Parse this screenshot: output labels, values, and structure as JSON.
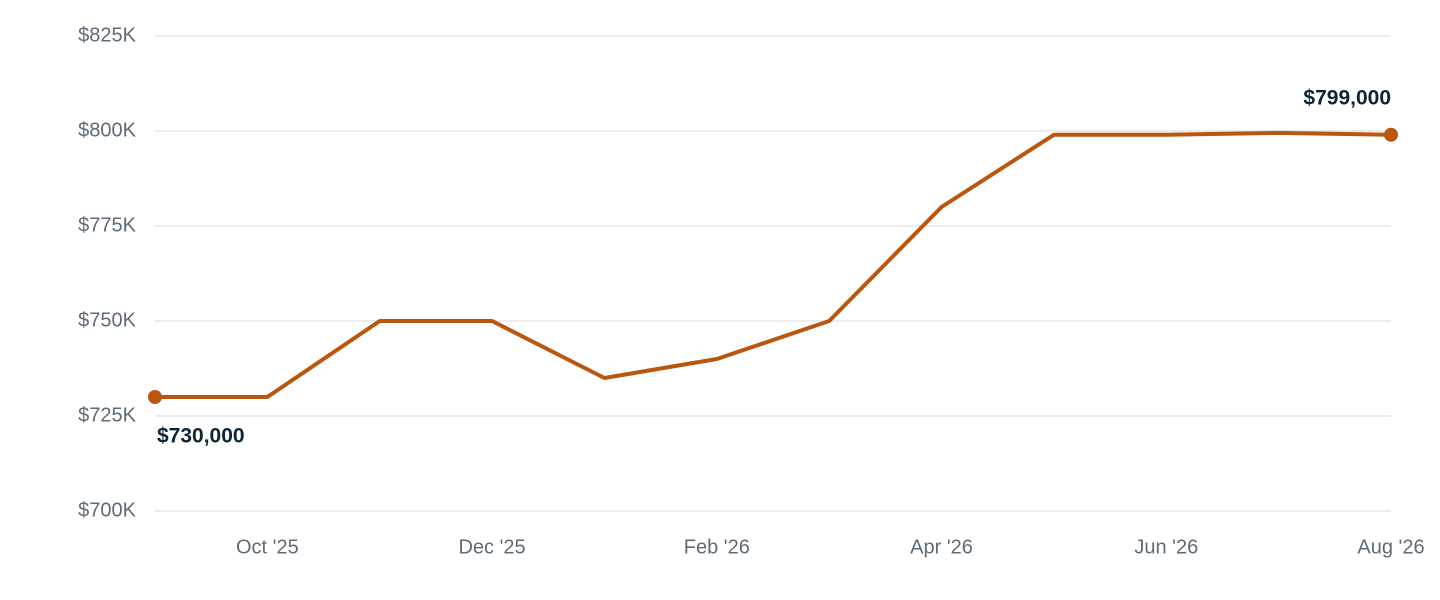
{
  "chart_data": {
    "type": "line",
    "categories": [
      null,
      "Oct '25",
      null,
      "Dec '25",
      null,
      "Feb '26",
      null,
      "Apr '26",
      null,
      "Jun '26",
      null,
      "Aug '26"
    ],
    "values": [
      730000,
      730000,
      750000,
      750000,
      735000,
      740000,
      750000,
      780000,
      799000,
      799000,
      799500,
      799000
    ],
    "value_labels": [
      "$730,000",
      null,
      null,
      null,
      null,
      null,
      null,
      null,
      null,
      null,
      null,
      "$799,000"
    ],
    "color": "#b9560f",
    "ylim": [
      700000,
      825000
    ],
    "yticks": [
      {
        "value": 700000,
        "label": "$700K"
      },
      {
        "value": 725000,
        "label": "$725K"
      },
      {
        "value": 750000,
        "label": "$750K"
      },
      {
        "value": 775000,
        "label": "$775K"
      },
      {
        "value": 800000,
        "label": "$800K"
      },
      {
        "value": 825000,
        "label": "$825K"
      }
    ],
    "grid": true
  }
}
